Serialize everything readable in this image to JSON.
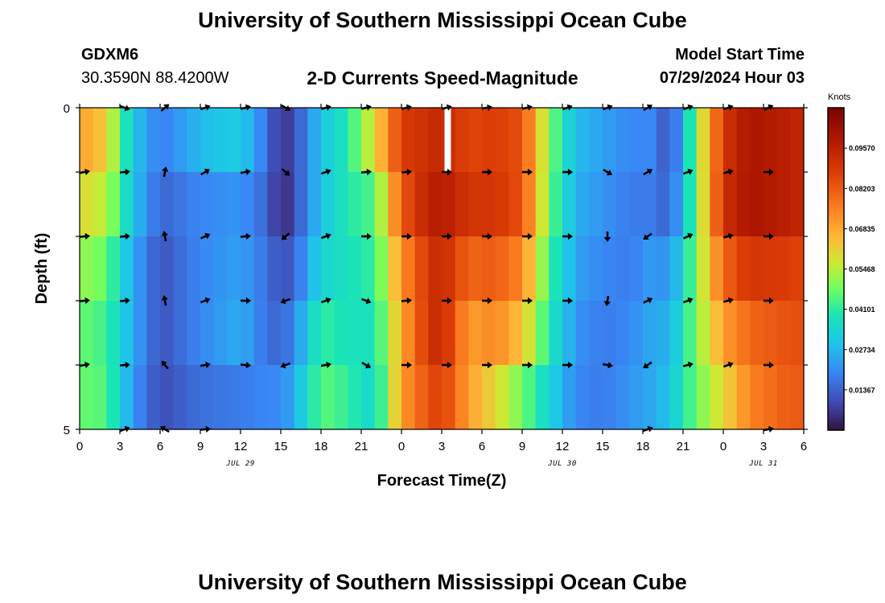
{
  "header": {
    "title": "University of Southern Mississippi Ocean Cube",
    "station_id": "GDXM6",
    "station_coords": "30.3590N  88.4200W",
    "chart_title": "2-D Currents Speed-Magnitude",
    "model_start_label": "Model Start Time",
    "model_start_value": "07/29/2024 Hour 03"
  },
  "footer": {
    "repeated_title": "University of Southern Mississippi Ocean Cube"
  },
  "colors": {
    "frame": "#000000",
    "arrow": "#000000",
    "missing": "#ffffff"
  },
  "chart_data": {
    "type": "heatmap",
    "title": "2-D Currents Speed-Magnitude",
    "xlabel": "Forecast Time(Z)",
    "ylabel": "Depth (ft)",
    "x_ticks": [
      {
        "value": 0,
        "label": "0"
      },
      {
        "value": 3,
        "label": "3"
      },
      {
        "value": 6,
        "label": "6"
      },
      {
        "value": 9,
        "label": "9"
      },
      {
        "value": 12,
        "label": "12"
      },
      {
        "value": 15,
        "label": "15"
      },
      {
        "value": 18,
        "label": "18"
      },
      {
        "value": 21,
        "label": "21"
      },
      {
        "value": 24,
        "label": "0"
      },
      {
        "value": 27,
        "label": "3"
      },
      {
        "value": 30,
        "label": "6"
      },
      {
        "value": 33,
        "label": "9"
      },
      {
        "value": 36,
        "label": "12"
      },
      {
        "value": 39,
        "label": "15"
      },
      {
        "value": 42,
        "label": "18"
      },
      {
        "value": 45,
        "label": "21"
      },
      {
        "value": 48,
        "label": "0"
      },
      {
        "value": 51,
        "label": "3"
      },
      {
        "value": 54,
        "label": "6"
      }
    ],
    "x_range": [
      0,
      54
    ],
    "date_labels": [
      {
        "hour": 12,
        "label": "JUL 29"
      },
      {
        "hour": 36,
        "label": "JUL 30"
      },
      {
        "hour": 51,
        "label": "JUL 31"
      }
    ],
    "y_ticks": [
      {
        "value": 0,
        "label": "0"
      },
      {
        "value": 5,
        "label": "5"
      }
    ],
    "y_range": [
      0,
      5
    ],
    "depth_levels": [
      0,
      1,
      2,
      3,
      4,
      5
    ],
    "colorbar": {
      "title": "Knots",
      "min": 0,
      "max": 0.1094,
      "tick_labels": [
        "0.09570",
        "0.08203",
        "0.06835",
        "0.05468",
        "0.04101",
        "0.02734",
        "0.01367"
      ],
      "tick_values": [
        0.0957,
        0.08203,
        0.06835,
        0.05468,
        0.04101,
        0.02734,
        0.01367
      ]
    },
    "speed_keyframes": [
      {
        "hour": 0,
        "values": [
          0.07,
          0.06,
          0.052,
          0.047,
          0.047,
          0.044
        ]
      },
      {
        "hour": 2,
        "values": [
          0.062,
          0.055,
          0.047,
          0.043,
          0.045,
          0.04
        ]
      },
      {
        "hour": 4,
        "values": [
          0.03,
          0.03,
          0.025,
          0.025,
          0.022,
          0.02
        ]
      },
      {
        "hour": 6,
        "values": [
          0.018,
          0.014,
          0.011,
          0.011,
          0.01,
          0.005
        ]
      },
      {
        "hour": 9,
        "values": [
          0.028,
          0.02,
          0.02,
          0.02,
          0.016,
          0.016
        ]
      },
      {
        "hour": 12,
        "values": [
          0.032,
          0.022,
          0.024,
          0.026,
          0.018,
          0.02
        ]
      },
      {
        "hour": 14,
        "values": [
          0.016,
          0.014,
          0.016,
          0.016,
          0.02,
          0.02
        ]
      },
      {
        "hour": 15,
        "values": [
          0.005,
          0.003,
          0.01,
          0.014,
          0.02,
          0.024
        ]
      },
      {
        "hour": 16,
        "values": [
          0.01,
          0.01,
          0.014,
          0.02,
          0.026,
          0.03
        ]
      },
      {
        "hour": 18,
        "values": [
          0.03,
          0.03,
          0.034,
          0.042,
          0.046,
          0.048
        ]
      },
      {
        "hour": 20,
        "values": [
          0.04,
          0.04,
          0.038,
          0.038,
          0.042,
          0.048
        ]
      },
      {
        "hour": 22,
        "values": [
          0.06,
          0.045,
          0.042,
          0.038,
          0.034,
          0.04
        ]
      },
      {
        "hour": 24,
        "values": [
          0.088,
          0.082,
          0.072,
          0.068,
          0.07,
          0.06
        ]
      },
      {
        "hour": 26,
        "values": [
          0.092,
          0.096,
          0.09,
          0.09,
          0.084,
          0.075
        ]
      },
      {
        "hour": 27,
        "values": [
          0.094,
          0.098,
          0.094,
          0.094,
          0.088,
          0.08
        ]
      },
      {
        "hour": 29,
        "values": [
          0.086,
          0.09,
          0.08,
          0.07,
          0.07,
          0.06
        ]
      },
      {
        "hour": 31,
        "values": [
          0.088,
          0.09,
          0.082,
          0.074,
          0.06,
          0.045
        ]
      },
      {
        "hour": 33,
        "values": [
          0.084,
          0.084,
          0.074,
          0.064,
          0.048,
          0.03
        ]
      },
      {
        "hour": 35,
        "values": [
          0.05,
          0.048,
          0.044,
          0.04,
          0.034,
          0.022
        ]
      },
      {
        "hour": 37,
        "values": [
          0.028,
          0.026,
          0.024,
          0.022,
          0.02,
          0.015
        ]
      },
      {
        "hour": 39,
        "values": [
          0.024,
          0.022,
          0.02,
          0.018,
          0.018,
          0.014
        ]
      },
      {
        "hour": 41,
        "values": [
          0.02,
          0.018,
          0.018,
          0.02,
          0.022,
          0.02
        ]
      },
      {
        "hour": 43,
        "values": [
          0.02,
          0.018,
          0.024,
          0.026,
          0.026,
          0.026
        ]
      },
      {
        "hour": 44,
        "values": [
          0.008,
          0.012,
          0.02,
          0.026,
          0.03,
          0.03
        ]
      },
      {
        "hour": 46,
        "values": [
          0.05,
          0.048,
          0.05,
          0.05,
          0.048,
          0.04
        ]
      },
      {
        "hour": 48,
        "values": [
          0.09,
          0.092,
          0.08,
          0.07,
          0.06,
          0.05
        ]
      },
      {
        "hour": 50,
        "values": [
          0.1,
          0.1,
          0.09,
          0.08,
          0.075,
          0.065
        ]
      },
      {
        "hour": 53,
        "values": [
          0.096,
          0.096,
          0.088,
          0.084,
          0.082,
          0.075
        ]
      },
      {
        "hour": 54,
        "values": [
          0.094,
          0.094,
          0.086,
          0.084,
          0.082,
          0.074
        ]
      }
    ],
    "missing_cells": [
      {
        "hour": 27,
        "depth_index": 0
      }
    ],
    "vector_hours": [
      0,
      3,
      6,
      9,
      12,
      15,
      18,
      21,
      24,
      27,
      30,
      33,
      36,
      39,
      42,
      45,
      48,
      51
    ],
    "vectors_deg": [
      [
        null,
        20,
        -40,
        -20,
        -15,
        30,
        -15,
        -15,
        -15,
        -15,
        -10,
        -15,
        -20,
        -20,
        -30,
        -20,
        -20,
        -25
      ],
      [
        -10,
        -5,
        -80,
        -30,
        -10,
        40,
        -20,
        -5,
        -5,
        0,
        0,
        0,
        0,
        30,
        -30,
        -20,
        -15,
        0
      ],
      [
        -5,
        -5,
        -100,
        -25,
        -5,
        140,
        -20,
        0,
        0,
        0,
        0,
        0,
        0,
        90,
        145,
        -25,
        -15,
        0
      ],
      [
        -5,
        -5,
        -100,
        -20,
        0,
        160,
        -20,
        20,
        -5,
        0,
        0,
        0,
        0,
        100,
        -25,
        -20,
        -15,
        0
      ],
      [
        -10,
        -5,
        -130,
        -10,
        5,
        160,
        -10,
        30,
        0,
        0,
        0,
        0,
        0,
        10,
        145,
        -15,
        -20,
        0
      ],
      [
        null,
        -20,
        -150,
        -5,
        null,
        null,
        null,
        null,
        null,
        null,
        null,
        null,
        null,
        null,
        -20,
        null,
        null,
        -10
      ]
    ]
  }
}
